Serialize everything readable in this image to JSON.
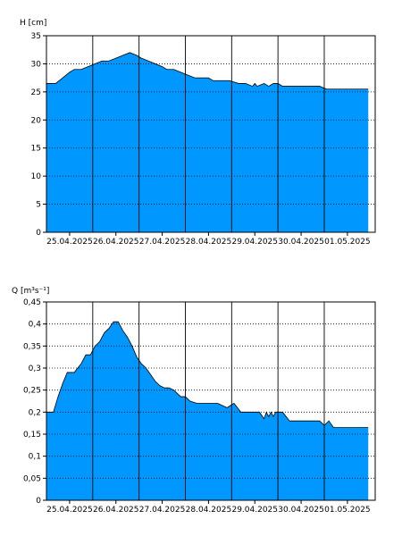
{
  "colors": {
    "fill": "#0097ff",
    "stroke": "#000000",
    "grid": "#000000",
    "background": "#ffffff"
  },
  "chart_data": [
    {
      "type": "area",
      "ylabel": "H [cm]",
      "ylim": [
        0,
        35
      ],
      "yticks": [
        0,
        5,
        10,
        15,
        20,
        25,
        30,
        35
      ],
      "ytick_labels": [
        "0",
        "5",
        "10",
        "15",
        "20",
        "25",
        "30",
        "35"
      ],
      "xlim": [
        0,
        7.1
      ],
      "date_ticks": [
        {
          "label": "25.04.2025",
          "x": 0.5
        },
        {
          "label": "26.04.2025",
          "x": 1.5
        },
        {
          "label": "27.04.2025",
          "x": 2.5
        },
        {
          "label": "28.04.2025",
          "x": 3.5
        },
        {
          "label": "29.04.2025",
          "x": 4.5
        },
        {
          "label": "30.04.2025",
          "x": 5.5
        },
        {
          "label": "01.05.2025",
          "x": 6.5
        }
      ],
      "day_lines": [
        1,
        2,
        3,
        4,
        5,
        6
      ],
      "grid": true,
      "x": [
        0.0,
        0.2,
        0.35,
        0.5,
        0.6,
        0.75,
        0.9,
        1.05,
        1.2,
        1.35,
        1.5,
        1.65,
        1.8,
        1.95,
        2.05,
        2.2,
        2.35,
        2.5,
        2.6,
        2.75,
        2.9,
        3.05,
        3.2,
        3.35,
        3.5,
        3.6,
        3.75,
        3.95,
        4.15,
        4.3,
        4.45,
        4.5,
        4.55,
        4.7,
        4.8,
        4.9,
        5.0,
        5.1,
        5.25,
        5.4,
        5.5,
        5.7,
        5.9,
        6.05,
        6.2,
        6.5,
        6.8,
        6.95
      ],
      "y": [
        26.5,
        26.5,
        27.5,
        28.5,
        29.0,
        29.0,
        29.5,
        30.0,
        30.5,
        30.5,
        31.0,
        31.5,
        32.0,
        31.5,
        31.0,
        30.5,
        30.0,
        29.5,
        29.0,
        29.0,
        28.5,
        28.0,
        27.5,
        27.5,
        27.5,
        27.0,
        27.0,
        27.0,
        26.5,
        26.5,
        26.0,
        26.5,
        26.0,
        26.5,
        26.0,
        26.5,
        26.5,
        26.0,
        26.0,
        26.0,
        26.0,
        26.0,
        26.0,
        25.5,
        25.5,
        25.5,
        25.5,
        25.5
      ]
    },
    {
      "type": "area",
      "ylabel": "Q [m³s⁻¹]",
      "ylim": [
        0,
        0.45
      ],
      "yticks": [
        0,
        0.05,
        0.1,
        0.15,
        0.2,
        0.25,
        0.3,
        0.35,
        0.4,
        0.45
      ],
      "ytick_labels": [
        "0",
        "0,05",
        "0,1",
        "0,15",
        "0,2",
        "0,25",
        "0,3",
        "0,35",
        "0,4",
        "0,45"
      ],
      "xlim": [
        0,
        7.1
      ],
      "date_ticks": [
        {
          "label": "25.04.2025",
          "x": 0.5
        },
        {
          "label": "26.04.2025",
          "x": 1.5
        },
        {
          "label": "27.04.2025",
          "x": 2.5
        },
        {
          "label": "28.04.2025",
          "x": 3.5
        },
        {
          "label": "29.04.2025",
          "x": 4.5
        },
        {
          "label": "30.04.2025",
          "x": 5.5
        },
        {
          "label": "01.05.2025",
          "x": 6.5
        }
      ],
      "day_lines": [
        1,
        2,
        3,
        4,
        5,
        6
      ],
      "grid": true,
      "x": [
        0.0,
        0.15,
        0.25,
        0.35,
        0.45,
        0.6,
        0.75,
        0.85,
        0.95,
        1.05,
        1.15,
        1.25,
        1.35,
        1.45,
        1.55,
        1.65,
        1.75,
        1.85,
        1.95,
        2.05,
        2.15,
        2.25,
        2.35,
        2.45,
        2.55,
        2.65,
        2.75,
        2.9,
        3.0,
        3.1,
        3.25,
        3.4,
        3.5,
        3.7,
        3.9,
        4.05,
        4.2,
        4.25,
        4.3,
        4.45,
        4.6,
        4.7,
        4.75,
        4.8,
        4.85,
        4.9,
        4.95,
        5.0,
        5.1,
        5.25,
        5.4,
        5.55,
        5.75,
        5.9,
        6.0,
        6.1,
        6.2,
        6.4,
        6.6,
        6.8,
        6.95
      ],
      "y": [
        0.2,
        0.2,
        0.235,
        0.265,
        0.29,
        0.29,
        0.31,
        0.33,
        0.33,
        0.35,
        0.36,
        0.38,
        0.39,
        0.405,
        0.405,
        0.385,
        0.37,
        0.35,
        0.325,
        0.31,
        0.3,
        0.285,
        0.27,
        0.26,
        0.255,
        0.255,
        0.25,
        0.235,
        0.235,
        0.225,
        0.22,
        0.22,
        0.22,
        0.22,
        0.21,
        0.22,
        0.2,
        0.2,
        0.2,
        0.2,
        0.2,
        0.185,
        0.2,
        0.19,
        0.2,
        0.19,
        0.2,
        0.2,
        0.2,
        0.18,
        0.18,
        0.18,
        0.18,
        0.18,
        0.17,
        0.18,
        0.165,
        0.165,
        0.165,
        0.165,
        0.165
      ]
    }
  ]
}
